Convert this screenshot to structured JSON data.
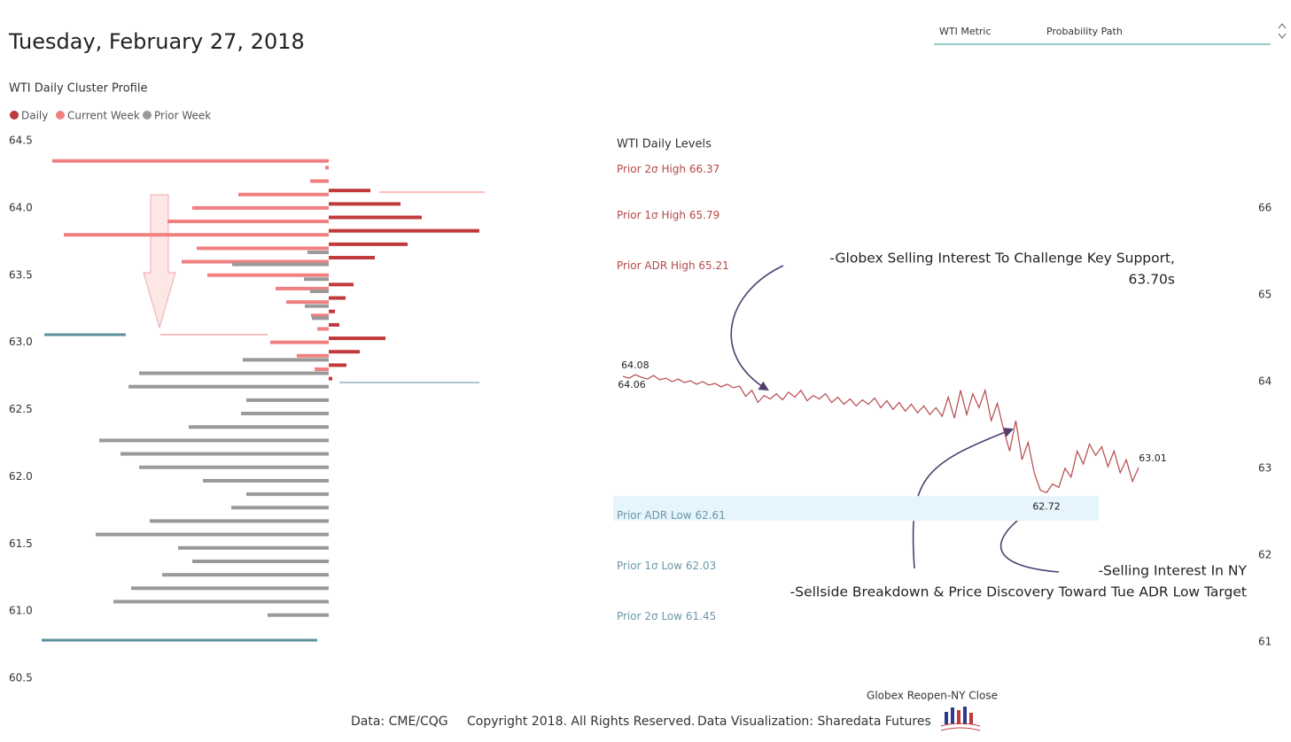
{
  "header": {
    "title": "Tuesday, February 27, 2018",
    "slicer": [
      "WTI Metric",
      "Probability Path"
    ]
  },
  "chart_data": [
    {
      "type": "cluster-profile",
      "title": "WTI Daily Cluster Profile",
      "ylim": [
        60.5,
        64.5
      ],
      "yticks": [
        64.5,
        {
          "value": 64,
          "label": "64.0"
        },
        63.5,
        {
          "value": 63,
          "label": "63.0"
        },
        62.5,
        {
          "value": 62,
          "label": "62.0"
        },
        61.5,
        {
          "value": 61,
          "label": "61.0"
        },
        60.5
      ],
      "series": [
        {
          "name": "Daily",
          "color": "#c0393b",
          "direction": "right",
          "y": [
            64.13,
            64.03,
            63.93,
            63.83,
            63.73,
            63.63,
            63.43,
            63.33,
            63.23,
            63.13,
            63.03,
            62.93,
            62.83,
            62.73
          ],
          "values": [
            47,
            81,
            105,
            170,
            89,
            52,
            28,
            19,
            7,
            12,
            64,
            35,
            20,
            4
          ]
        },
        {
          "name": "Current Week",
          "color": "#f08080",
          "direction": "left",
          "y": [
            64.35,
            64.3,
            64.2,
            64.1,
            64.0,
            63.9,
            63.8,
            63.7,
            63.6,
            63.5,
            63.4,
            63.3,
            63.2,
            63.1,
            63.0,
            62.9,
            62.8
          ],
          "values": [
            312,
            4,
            21,
            102,
            154,
            182,
            299,
            149,
            166,
            137,
            60,
            48,
            20,
            13,
            66,
            36,
            16
          ]
        },
        {
          "name": "Prior Week",
          "color": "#999999",
          "direction": "left",
          "y": [
            63.67,
            63.58,
            63.47,
            63.38,
            63.27,
            63.18,
            62.87,
            62.77,
            62.67,
            62.57,
            62.47,
            62.37,
            62.27,
            62.17,
            62.07,
            61.97,
            61.87,
            61.77,
            61.67,
            61.57,
            61.47,
            61.37,
            61.27,
            61.17,
            61.07,
            60.97
          ],
          "values": [
            24,
            109,
            28,
            21,
            27,
            19,
            97,
            214,
            226,
            93,
            99,
            158,
            259,
            235,
            214,
            142,
            93,
            110,
            202,
            263,
            170,
            154,
            188,
            223,
            243,
            69
          ]
        }
      ]
    },
    {
      "type": "line",
      "title": "WTI Daily Levels",
      "color": "#b5484a",
      "ylim": [
        60.5,
        66.5
      ],
      "yticks": [
        61,
        62,
        63,
        64,
        65,
        66
      ],
      "x_label": "Globex Reopen-NY Close",
      "levels": [
        {
          "label": "Prior 2σ High",
          "value": 66.37,
          "color": "#b5484a"
        },
        {
          "label": "Prior 1σ High",
          "value": 65.79,
          "color": "#b5484a"
        },
        {
          "label": "Prior ADR High",
          "value": 65.21,
          "color": "#b5484a"
        },
        {
          "label": "Prior ADR Low",
          "value": 62.61,
          "color": "#6a98a8"
        },
        {
          "label": "Prior 1σ Low",
          "value": 62.03,
          "color": "#6a98a8"
        },
        {
          "label": "Prior 2σ Low",
          "value": 61.45,
          "color": "#6a98a8"
        }
      ],
      "values": [
        64.06,
        64.04,
        64.08,
        64.05,
        64.03,
        64.07,
        64.02,
        64.04,
        64.0,
        64.03,
        63.99,
        64.01,
        63.97,
        64.0,
        63.96,
        63.98,
        63.94,
        63.97,
        63.93,
        63.95,
        63.83,
        63.9,
        63.76,
        63.84,
        63.8,
        63.86,
        63.79,
        63.88,
        63.82,
        63.9,
        63.78,
        63.84,
        63.8,
        63.86,
        63.76,
        63.82,
        63.74,
        63.8,
        63.72,
        63.79,
        63.74,
        63.81,
        63.7,
        63.78,
        63.68,
        63.76,
        63.66,
        63.74,
        63.64,
        63.72,
        63.62,
        63.7,
        63.6,
        63.82,
        63.58,
        63.9,
        63.62,
        63.86,
        63.7,
        63.9,
        63.55,
        63.75,
        63.45,
        63.2,
        63.55,
        63.1,
        63.3,
        62.95,
        62.75,
        62.72,
        62.82,
        62.78,
        63.0,
        62.9,
        63.2,
        63.05,
        63.28,
        63.15,
        63.25,
        63.02,
        63.2,
        62.95,
        63.1,
        62.85,
        63.01
      ],
      "value_labels": [
        "64.06",
        null,
        "64.08",
        null,
        null,
        null,
        null,
        null,
        null,
        null,
        null,
        null,
        null,
        null,
        null,
        null,
        null,
        null,
        null,
        null,
        null,
        null,
        null,
        null,
        null,
        null,
        null,
        null,
        null,
        null,
        null,
        null,
        null,
        null,
        null,
        null,
        null,
        null,
        null,
        null,
        null,
        null,
        null,
        null,
        null,
        null,
        null,
        null,
        null,
        null,
        null,
        null,
        null,
        null,
        null,
        null,
        null,
        null,
        null,
        null,
        null,
        null,
        null,
        null,
        null,
        null,
        null,
        null,
        null,
        "62.72",
        null,
        null,
        null,
        null,
        null,
        null,
        null,
        null,
        null,
        null,
        null,
        null,
        null,
        null,
        "63.01"
      ],
      "annotations": [
        {
          "lines": [
            "-Globex Selling Interest To Challenge Key Support,",
            "63.70s"
          ]
        },
        {
          "lines": [
            "-Selling Interest In NY"
          ]
        },
        {
          "lines": [
            "-Sellside Breakdown & Price Discovery Toward Tue ADR Low Target"
          ]
        }
      ]
    }
  ],
  "footer": {
    "data": "Data: CME/CQG",
    "copyright": "Copyright 2018. All Rights Reserved.",
    "viz": "Data Visualization: Sharedata Futures"
  }
}
